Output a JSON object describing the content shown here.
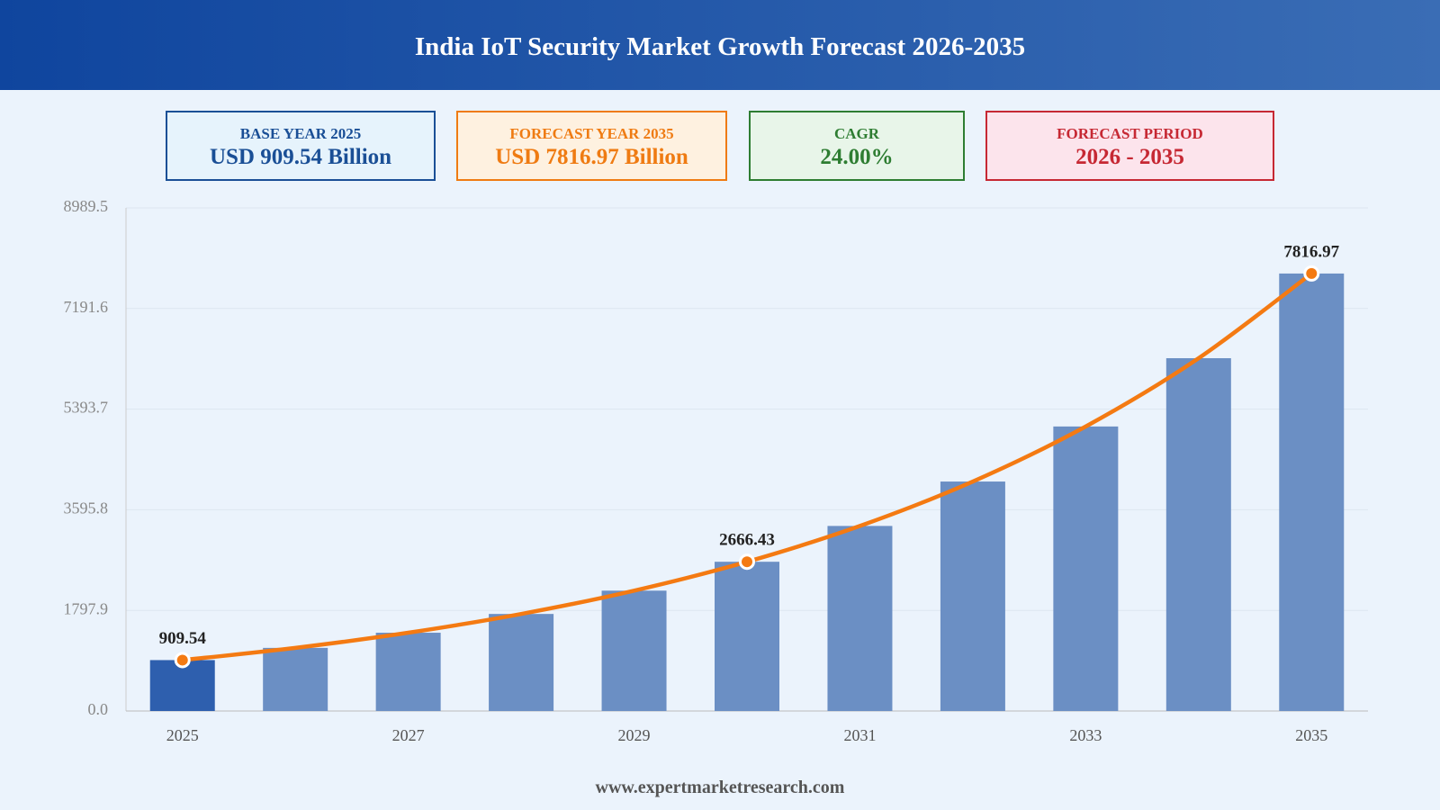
{
  "header": {
    "title": "India IoT Security Market Growth Forecast 2026-2035"
  },
  "kpis": [
    {
      "label": "BASE YEAR 2025",
      "value": "USD 909.54 Billion",
      "color": "#1a4f96",
      "background": "#e6f3fc"
    },
    {
      "label": "FORECAST YEAR 2035",
      "value": "USD 7816.97 Billion",
      "color": "#ef7b12",
      "background": "#fef1e0"
    },
    {
      "label": "CAGR",
      "value": "24.00%",
      "color": "#2e7d32",
      "background": "#e8f5e9"
    },
    {
      "label": "FORECAST PERIOD",
      "value": "2026 - 2035",
      "color": "#c62833",
      "background": "#fce4ec"
    }
  ],
  "chart_data": {
    "type": "bar",
    "categories": [
      "2025",
      null,
      "2027",
      null,
      "2029",
      null,
      "2031",
      null,
      "2033",
      null,
      "2035"
    ],
    "values": [
      909.54,
      1127.83,
      1398.51,
      1734.15,
      2150.35,
      2666.43,
      3306.37,
      4099.9,
      5083.88,
      6304.01,
      7816.97
    ],
    "value_labels": [
      "909.54",
      null,
      null,
      null,
      null,
      "2666.43",
      null,
      null,
      null,
      null,
      "7816.97"
    ],
    "color": "#6b8fc4",
    "highlight_color": "#2e5fae",
    "trend_line": true,
    "line_color": "#f47a12",
    "ylim": [
      0,
      8989.5
    ],
    "yticks": [
      {
        "value": 0,
        "label": "0.0"
      },
      1797.9,
      3595.8,
      5393.7,
      7191.6,
      8989.5
    ],
    "grid": true
  },
  "footer": {
    "source": "www.expertmarketresearch.com"
  }
}
